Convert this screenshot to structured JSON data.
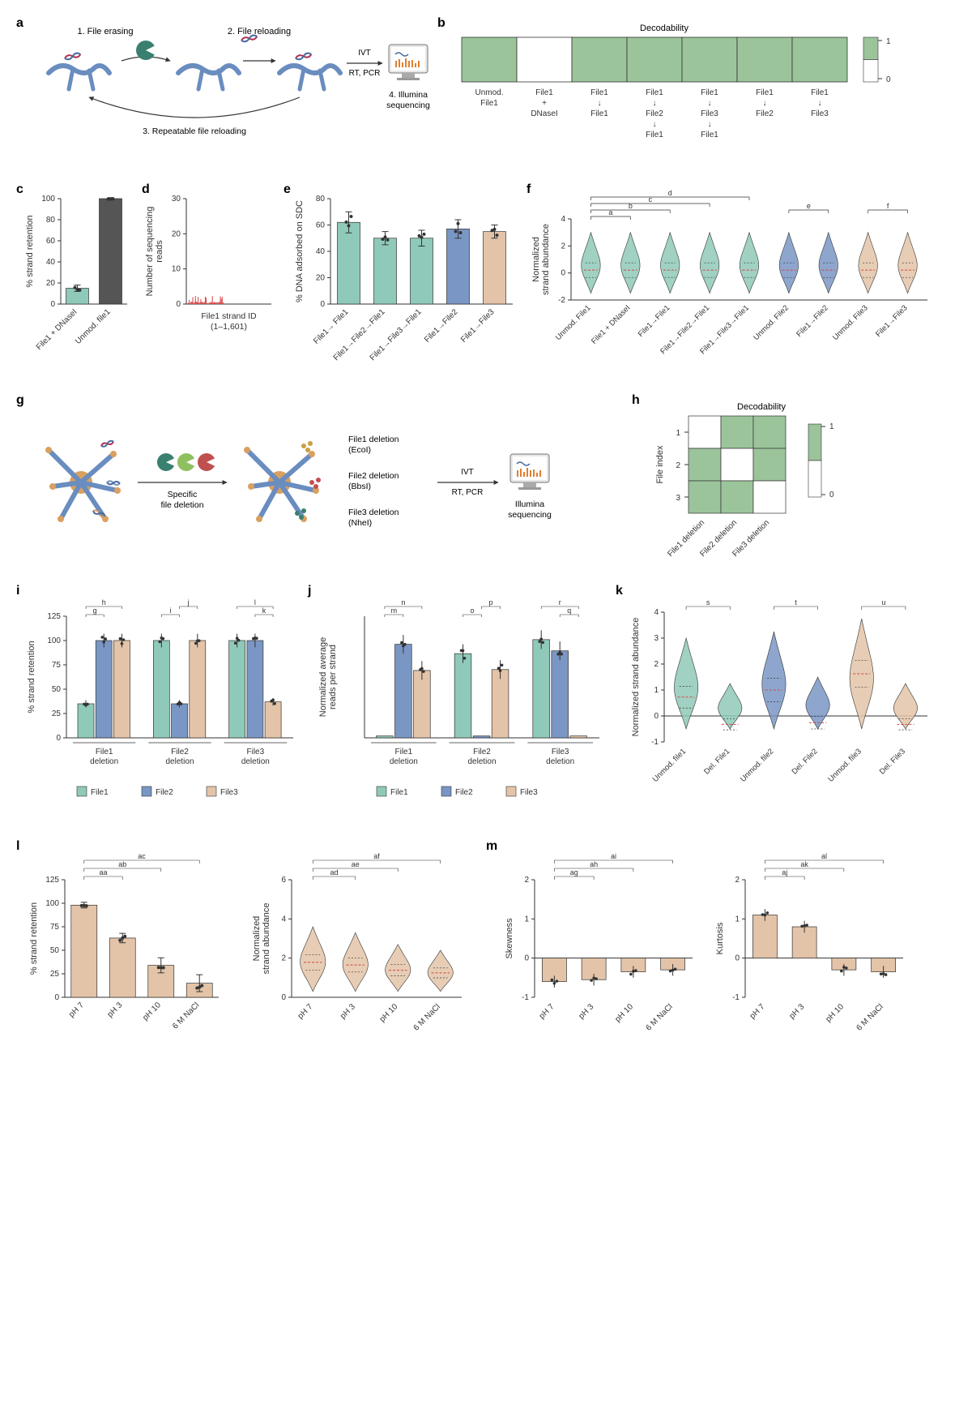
{
  "colors": {
    "teal": "#8fc9b9",
    "blue": "#7a96c4",
    "tan": "#e3c4a8",
    "green_fill": "#9bc49b",
    "gray": "#666666",
    "dark_teal": "#3a8070",
    "red": "#d64545",
    "dark_blue": "#4a6ba0",
    "axis": "#333333",
    "bg": "#ffffff"
  },
  "panel_a": {
    "label": "a",
    "step1": "1. File erasing",
    "step2": "2. File reloading",
    "step3": "3. Repeatable file reloading",
    "step4": "4. Illumina sequencing",
    "ivt": "IVT",
    "rt_pcr": "RT, PCR"
  },
  "panel_b": {
    "label": "b",
    "title": "Decodability",
    "legend": [
      "1",
      "0"
    ],
    "categories": [
      "Unmod.\nFile1",
      "File1\n+\nDNaseI",
      "File1\n↓\nFile1",
      "File1\n↓\nFile2\n↓\nFile1",
      "File1\n↓\nFile3\n↓\nFile1",
      "File1\n↓\nFile2",
      "File1\n↓\nFile3"
    ],
    "values": [
      1,
      0,
      1,
      1,
      1,
      1,
      1
    ]
  },
  "panel_c": {
    "label": "c",
    "ylabel": "% strand retention",
    "ylim": [
      0,
      100
    ],
    "yticks": [
      0,
      20,
      40,
      60,
      80,
      100
    ],
    "categories": [
      "File1 + DNaseI",
      "Unmod. file1"
    ],
    "values": [
      15,
      100
    ],
    "errors": [
      3,
      1
    ],
    "colors": [
      "#8fc9b9",
      "#555555"
    ]
  },
  "panel_d": {
    "label": "d",
    "ylabel": "Number of sequencing\nreads",
    "xlabel": "File1 strand ID\n(1–1,601)",
    "ylim": [
      0,
      30
    ],
    "yticks": [
      0,
      10,
      20,
      30
    ]
  },
  "panel_e": {
    "label": "e",
    "ylabel": "% DNA adsorbed on SDC",
    "ylim": [
      0,
      80
    ],
    "yticks": [
      0,
      20,
      40,
      60,
      80
    ],
    "categories": [
      "File1→ File1",
      "File1→File2→File1",
      "File1→File3→File1",
      "File1→File2",
      "File1→File3"
    ],
    "values": [
      62,
      50,
      50,
      57,
      55
    ],
    "errors": [
      8,
      5,
      6,
      7,
      5
    ],
    "colors": [
      "#8fc9b9",
      "#8fc9b9",
      "#8fc9b9",
      "#7a96c4",
      "#e3c4a8"
    ]
  },
  "panel_f": {
    "label": "f",
    "ylabel": "Normalized\nstrand abundance",
    "ylim": [
      -2,
      4
    ],
    "yticks": [
      -2,
      0,
      2,
      4
    ],
    "categories": [
      "Unmod. File1",
      "File1 + DNaseI",
      "File1→File1",
      "File1→File2→File1",
      "File1→File3→File1",
      "Unmod. File2",
      "File1→File2",
      "Unmod. File3",
      "File1→File3"
    ],
    "colors": [
      "#8fc9b9",
      "#8fc9b9",
      "#8fc9b9",
      "#8fc9b9",
      "#8fc9b9",
      "#7a96c4",
      "#7a96c4",
      "#e3c4a8",
      "#e3c4a8"
    ],
    "sig_labels": [
      "a",
      "b",
      "c",
      "d",
      "e",
      "f"
    ]
  },
  "panel_g": {
    "label": "g",
    "specific": "Specific\nfile deletion",
    "file1_del": "File1 deletion\n(EcoI)",
    "file2_del": "File2 deletion\n(BbsI)",
    "file3_del": "File3 deletion\n(NheI)",
    "ivt": "IVT",
    "rt_pcr": "RT, PCR",
    "illumina": "Illumina\nsequencing"
  },
  "panel_h": {
    "label": "h",
    "title": "Decodability",
    "ylabel": "File index",
    "yticks": [
      "1",
      "2",
      "3"
    ],
    "xlabels": [
      "File1\ndeletion",
      "File2\ndeletion",
      "File3\ndeletion"
    ],
    "legend": [
      "1",
      "0"
    ],
    "matrix": [
      [
        0,
        1,
        1
      ],
      [
        1,
        0,
        1
      ],
      [
        1,
        1,
        0
      ]
    ]
  },
  "panel_i": {
    "label": "i",
    "ylabel": "% strand retention",
    "ylim": [
      0,
      125
    ],
    "yticks": [
      0,
      25,
      50,
      75,
      100,
      125
    ],
    "groups": [
      "File1\ndeletion",
      "File2\ndeletion",
      "File3\ndeletion"
    ],
    "series": [
      "File1",
      "File2",
      "File3"
    ],
    "series_colors": [
      "#8fc9b9",
      "#7a96c4",
      "#e3c4a8"
    ],
    "values": [
      [
        35,
        100,
        100
      ],
      [
        100,
        35,
        100
      ],
      [
        100,
        100,
        37
      ]
    ],
    "sig_labels": [
      "g",
      "h",
      "i",
      "j",
      "k",
      "l"
    ]
  },
  "panel_j": {
    "label": "j",
    "ylabel": "Normalized average\nreads per strand",
    "groups": [
      "File1\ndeletion",
      "File2\ndeletion",
      "File3\ndeletion"
    ],
    "series": [
      "File1",
      "File2",
      "File3"
    ],
    "series_colors": [
      "#8fc9b9",
      "#7a96c4",
      "#e3c4a8"
    ],
    "values": [
      [
        0.02,
        1.0,
        0.72
      ],
      [
        0.9,
        0.02,
        0.73
      ],
      [
        1.05,
        0.93,
        0.02
      ]
    ],
    "sig_labels": [
      "m",
      "n",
      "o",
      "p",
      "q",
      "r"
    ]
  },
  "panel_k": {
    "label": "k",
    "ylabel": "Normalized strand abundance",
    "ylim": [
      -1,
      4
    ],
    "yticks": [
      -1,
      0,
      1,
      2,
      3,
      4
    ],
    "categories": [
      "Unmod. file1",
      "Del. File1",
      "Unmod. file2",
      "Del. File2",
      "Unmod. file3",
      "Del. File3"
    ],
    "colors": [
      "#8fc9b9",
      "#8fc9b9",
      "#7a96c4",
      "#7a96c4",
      "#e3c4a8",
      "#e3c4a8"
    ],
    "sig_labels": [
      "s",
      "t",
      "u"
    ]
  },
  "panel_l": {
    "label": "l",
    "left": {
      "ylabel": "% strand retention",
      "ylim": [
        0,
        125
      ],
      "yticks": [
        0,
        25,
        50,
        75,
        100,
        125
      ],
      "categories": [
        "pH 7",
        "pH 3",
        "pH 10",
        "6 M NaCl"
      ],
      "values": [
        98,
        63,
        34,
        15
      ],
      "errors": [
        3,
        5,
        8,
        9
      ],
      "sig_labels": [
        "aa",
        "ab",
        "ac"
      ]
    },
    "right": {
      "ylabel": "Normalized\nstrand abundance",
      "ylim": [
        0,
        6
      ],
      "yticks": [
        0,
        2,
        4,
        6
      ],
      "categories": [
        "pH 7",
        "pH 3",
        "pH 10",
        "6 M NaCl"
      ],
      "sig_labels": [
        "ad",
        "ae",
        "af"
      ]
    }
  },
  "panel_m": {
    "label": "m",
    "left": {
      "ylabel": "Skewness",
      "ylim": [
        -1,
        2
      ],
      "yticks": [
        -1,
        0,
        1,
        2
      ],
      "categories": [
        "pH 7",
        "pH 3",
        "pH 10",
        "6 M NaCl"
      ],
      "values": [
        -0.6,
        -0.55,
        -0.35,
        -0.3
      ],
      "sig_labels": [
        "ag",
        "ah",
        "ai"
      ]
    },
    "right": {
      "ylabel": "Kurtosis",
      "ylim": [
        -1,
        2
      ],
      "yticks": [
        -1,
        0,
        1,
        2
      ],
      "categories": [
        "pH 7",
        "pH 3",
        "pH 10",
        "6 M NaCl"
      ],
      "values": [
        1.1,
        0.8,
        -0.3,
        -0.35
      ],
      "sig_labels": [
        "aj",
        "ak",
        "al"
      ]
    }
  }
}
